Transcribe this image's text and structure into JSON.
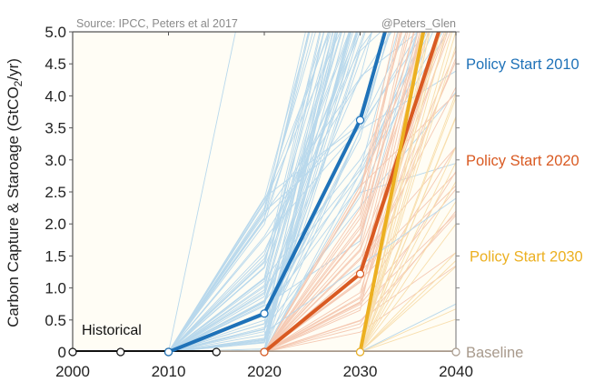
{
  "chart_data": {
    "type": "line",
    "source_note": "Source: IPCC, Peters et al 2017",
    "credit": "@Peters_Glen",
    "ylabel": "Carbon Capture & Staroage (GtCO",
    "ylabel_sub": "2",
    "ylabel_end": "/yr)",
    "xlabel": "",
    "xlim": [
      2000,
      2040
    ],
    "ylim": [
      0,
      5
    ],
    "x_ticks": [
      2000,
      2010,
      2020,
      2030,
      2040
    ],
    "x_tick_labels": [
      "2000",
      "2010",
      "2020",
      "2030",
      "2040"
    ],
    "y_ticks": [
      0,
      0.5,
      1,
      1.5,
      2,
      2.5,
      3,
      3.5,
      4,
      4.5,
      5
    ],
    "y_tick_labels": [
      "0",
      "0.5",
      "1.0",
      "1.5",
      "2.0",
      "2.5",
      "3.0",
      "3.5",
      "4.0",
      "4.5",
      "5.0"
    ],
    "grid": false,
    "background": "#fffdf5",
    "series": [
      {
        "name": "Historical",
        "color": "#111111",
        "x": [
          2000,
          2005,
          2010,
          2015
        ],
        "y": [
          0,
          0,
          0,
          0
        ],
        "label_position": "inside-bottom-left"
      },
      {
        "name": "Baseline",
        "color": "#a89a8c",
        "x": [
          2015,
          2020,
          2030,
          2040
        ],
        "y": [
          0,
          0,
          0,
          0
        ],
        "label_position": "right"
      },
      {
        "name": "Policy Start 2010",
        "color": "#1f72b8",
        "x": [
          2010,
          2020,
          2030,
          2032.6
        ],
        "y": [
          0,
          0.6,
          3.62,
          5.0
        ],
        "label_position": "right",
        "label_value": 4.5
      },
      {
        "name": "Policy Start 2020",
        "color": "#d95a22",
        "x": [
          2020,
          2030,
          2038.2
        ],
        "y": [
          0,
          1.22,
          5.0
        ],
        "label_position": "right",
        "label_value": 3.0
      },
      {
        "name": "Policy Start 2030",
        "color": "#ecb021",
        "x": [
          2030,
          2036.6
        ],
        "y": [
          0,
          5.0
        ],
        "label_position": "right",
        "label_value": 1.5
      }
    ],
    "ensemble": {
      "description": "Individual IPCC scenarios (thin lines) for each policy start",
      "colors": {
        "policy_2010": "#b8d8ec",
        "policy_2020": "#f5c9b3",
        "policy_2030": "#f8deac"
      }
    }
  }
}
